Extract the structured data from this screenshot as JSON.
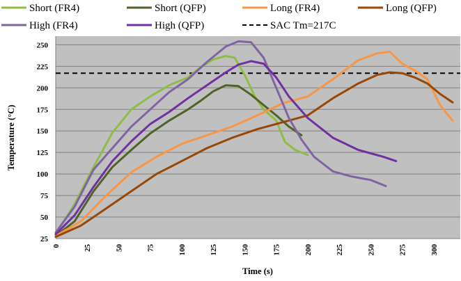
{
  "chart_data": {
    "type": "line",
    "title": "",
    "xlabel": "Time (s)",
    "ylabel": "Temperature (°C)",
    "xlim": [
      0,
      315
    ],
    "ylim": [
      25,
      260
    ],
    "xticks": [
      "0",
      "25",
      "50",
      "75",
      "100",
      "125",
      "150",
      "175",
      "200",
      "225",
      "250",
      "275",
      "300"
    ],
    "yticks": [
      "25",
      "50",
      "75",
      "100",
      "125",
      "150",
      "175",
      "200",
      "225",
      "250"
    ],
    "grid": "horizontal",
    "background": "#c0c0c0",
    "legend_position": "top",
    "reference_line": {
      "name": "SAC Tm=217C",
      "y": 217,
      "style": "dashed",
      "color": "#000000"
    },
    "series": [
      {
        "name": "Short (FR4)",
        "color": "#8fbc45",
        "x": [
          0,
          15,
          30,
          45,
          60,
          75,
          90,
          105,
          115,
          125,
          135,
          142,
          150,
          158,
          165,
          175,
          182,
          190,
          200
        ],
        "y": [
          30,
          65,
          108,
          148,
          175,
          190,
          203,
          212,
          224,
          233,
          237,
          235,
          215,
          190,
          175,
          162,
          137,
          128,
          122
        ]
      },
      {
        "name": "Short (QFP)",
        "color": "#4f6228",
        "x": [
          0,
          15,
          30,
          45,
          60,
          75,
          90,
          105,
          115,
          125,
          135,
          145,
          155,
          165,
          175,
          185,
          195
        ],
        "y": [
          28,
          45,
          80,
          108,
          128,
          147,
          162,
          175,
          185,
          196,
          203,
          202,
          192,
          180,
          168,
          155,
          145
        ]
      },
      {
        "name": "Long (FR4)",
        "color": "#f79646",
        "x": [
          0,
          20,
          40,
          60,
          80,
          100,
          120,
          140,
          160,
          180,
          200,
          220,
          240,
          255,
          265,
          275,
          285,
          295,
          305,
          315
        ],
        "y": [
          28,
          45,
          75,
          102,
          120,
          135,
          145,
          155,
          168,
          182,
          190,
          210,
          232,
          240,
          242,
          228,
          220,
          210,
          180,
          162
        ]
      },
      {
        "name": "Long (QFP)",
        "color": "#974706",
        "x": [
          0,
          20,
          40,
          60,
          80,
          100,
          120,
          140,
          160,
          180,
          200,
          220,
          240,
          255,
          265,
          275,
          285,
          295,
          305,
          315
        ],
        "y": [
          27,
          40,
          60,
          80,
          100,
          115,
          130,
          142,
          152,
          160,
          168,
          188,
          205,
          215,
          218,
          217,
          212,
          205,
          193,
          183
        ]
      },
      {
        "name": "High (FR4)",
        "color": "#8064a2",
        "x": [
          0,
          15,
          30,
          45,
          60,
          75,
          90,
          105,
          120,
          135,
          145,
          155,
          165,
          175,
          185,
          195,
          205,
          220,
          235,
          250,
          262
        ],
        "y": [
          32,
          62,
          105,
          130,
          155,
          175,
          195,
          210,
          230,
          248,
          254,
          253,
          235,
          200,
          165,
          140,
          120,
          103,
          97,
          93,
          86
        ]
      },
      {
        "name": "High (QFP)",
        "color": "#7030a0",
        "x": [
          0,
          15,
          30,
          45,
          60,
          75,
          90,
          105,
          120,
          135,
          145,
          155,
          165,
          175,
          185,
          200,
          220,
          240,
          260,
          270
        ],
        "y": [
          30,
          52,
          85,
          115,
          138,
          158,
          172,
          188,
          203,
          218,
          227,
          231,
          228,
          212,
          190,
          165,
          142,
          128,
          120,
          115
        ]
      }
    ]
  }
}
